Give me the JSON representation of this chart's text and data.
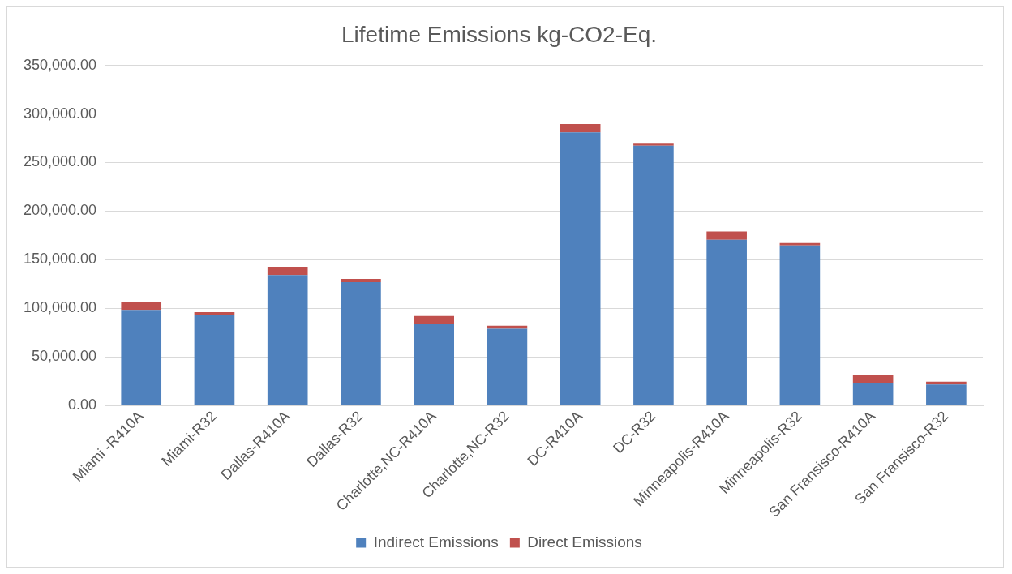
{
  "chart_data": {
    "type": "bar",
    "title": "Lifetime Emissions kg-CO2-Eq.",
    "categories": [
      "Miami -R410A",
      "Miami-R32",
      "Dallas-R410A",
      "Dallas-R32",
      "Charlotte,NC-R410A",
      "Charlotte,NC-R32",
      "DC-R410A",
      "DC-R32",
      "Minneapolis-R410A",
      "Minneapolis-R32",
      "San Fransisco-R410A",
      "San Fransisco-R32"
    ],
    "series": [
      {
        "name": "Indirect Emissions",
        "color": "#4f81bd",
        "values": [
          98300,
          93200,
          134200,
          127000,
          83600,
          79100,
          281000,
          267200,
          170500,
          164700,
          22800,
          21700
        ]
      },
      {
        "name": "Direct Emissions",
        "color": "#c0504d",
        "values": [
          8500,
          3000,
          8600,
          3300,
          8500,
          3000,
          8600,
          3100,
          8600,
          2500,
          8600,
          2800
        ]
      }
    ],
    "stacked": true,
    "ylim": [
      0,
      350000
    ],
    "yticks": [
      {
        "value": 0,
        "label": "0.00"
      },
      {
        "value": 50000,
        "label": "50,000.00"
      },
      {
        "value": 100000,
        "label": "100,000.00"
      },
      {
        "value": 150000,
        "label": "150,000.00"
      },
      {
        "value": 200000,
        "label": "200,000.00"
      },
      {
        "value": 250000,
        "label": "250,000.00"
      },
      {
        "value": 300000,
        "label": "300,000.00"
      },
      {
        "value": 350000,
        "label": "350,000.00"
      }
    ],
    "grid": "y",
    "legend": "bottom"
  }
}
